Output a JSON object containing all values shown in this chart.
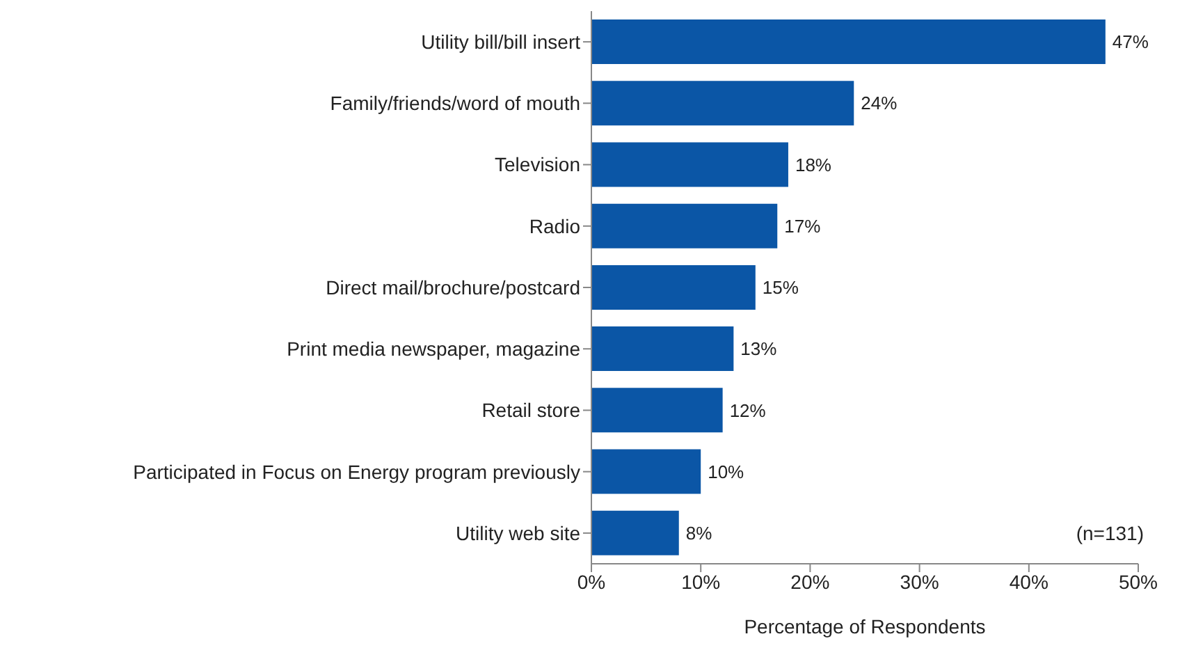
{
  "chart_data": {
    "type": "bar",
    "orientation": "horizontal",
    "xlabel": "Percentage of Respondents",
    "categories": [
      "Utility bill/bill insert",
      "Family/friends/word of mouth",
      "Television",
      "Radio",
      "Direct mail/brochure/postcard",
      "Print media newspaper, magazine",
      "Retail store",
      "Participated in Focus on Energy program previously",
      "Utility web site"
    ],
    "values": [
      47,
      24,
      18,
      17,
      15,
      13,
      12,
      10,
      8
    ],
    "value_labels": [
      "47%",
      "24%",
      "18%",
      "17%",
      "15%",
      "13%",
      "12%",
      "10%",
      "8%"
    ],
    "color": "#0b56a6",
    "xlim": [
      0,
      50
    ],
    "xticks": [
      {
        "value": 0,
        "label": "0%"
      },
      {
        "value": 10,
        "label": "10%"
      },
      {
        "value": 20,
        "label": "20%"
      },
      {
        "value": 30,
        "label": "30%"
      },
      {
        "value": 40,
        "label": "40%"
      },
      {
        "value": 50,
        "label": "50%"
      }
    ],
    "grid": false,
    "annotations": [
      "(n=131)"
    ]
  }
}
